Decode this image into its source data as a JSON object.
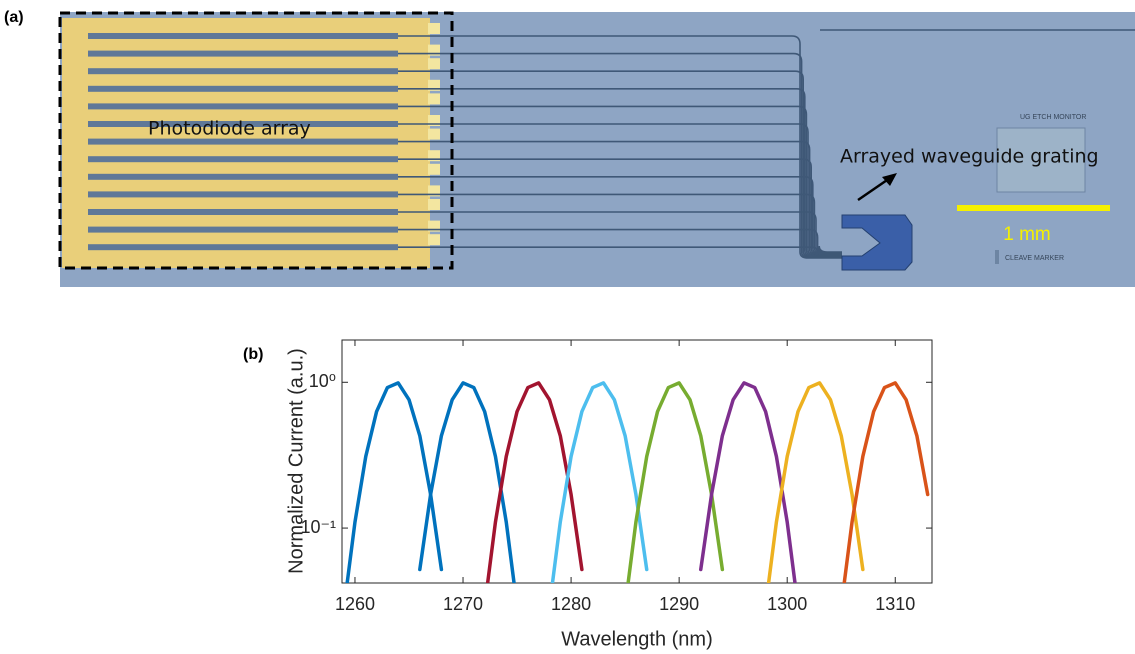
{
  "panel_a": {
    "label": "(a)",
    "photodiode_label": "Photodiode array",
    "awg_label": "Arrayed waveguide grating",
    "scale_label": "1 mm",
    "monitor_label": "UG ETCH MONITOR",
    "marker_label": "CLEAVE MARKER"
  },
  "chart_data": {
    "type": "line",
    "panel_label": "(b)",
    "x_label": "Wavelength (nm)",
    "y_label": "Normalized Current (a.u.)",
    "y_scale": "log",
    "xlim": [
      1258.8,
      1313.4
    ],
    "xticks": [
      1260,
      1270,
      1280,
      1290,
      1300,
      1310
    ],
    "ylim": [
      0.042,
      1.95
    ],
    "yticks": [
      {
        "value": 0.1,
        "label": "10⁻¹"
      },
      {
        "value": 1,
        "label": "10⁰"
      }
    ],
    "line_width": 3.5,
    "series": [
      {
        "color": "#0072BD",
        "x": [
          1259,
          1260,
          1261,
          1262,
          1263,
          1264,
          1265,
          1266,
          1267,
          1268
        ],
        "values": [
          0.029,
          0.11,
          0.31,
          0.63,
          0.92,
          0.99,
          0.76,
          0.43,
          0.17,
          0.052
        ]
      },
      {
        "color": "#0072BD",
        "x": [
          1266,
          1267,
          1268,
          1269,
          1270,
          1271,
          1272,
          1273,
          1274,
          1275
        ],
        "values": [
          0.052,
          0.17,
          0.43,
          0.76,
          0.99,
          0.92,
          0.63,
          0.31,
          0.11,
          0.029
        ]
      },
      {
        "color": "#A2142F",
        "x": [
          1272,
          1273,
          1274,
          1275,
          1276,
          1277,
          1278,
          1279,
          1280,
          1281
        ],
        "values": [
          0.029,
          0.11,
          0.31,
          0.63,
          0.92,
          0.99,
          0.76,
          0.43,
          0.17,
          0.052
        ]
      },
      {
        "color": "#4DBEEE",
        "x": [
          1278,
          1279,
          1280,
          1281,
          1282,
          1283,
          1284,
          1285,
          1286,
          1287
        ],
        "values": [
          0.029,
          0.11,
          0.31,
          0.63,
          0.92,
          0.99,
          0.76,
          0.43,
          0.17,
          0.052
        ]
      },
      {
        "color": "#77AC30",
        "x": [
          1285,
          1286,
          1287,
          1288,
          1289,
          1290,
          1291,
          1292,
          1293,
          1294
        ],
        "values": [
          0.029,
          0.11,
          0.31,
          0.63,
          0.92,
          0.99,
          0.76,
          0.43,
          0.17,
          0.052
        ]
      },
      {
        "color": "#7E2F8E",
        "x": [
          1292,
          1293,
          1294,
          1295,
          1296,
          1297,
          1298,
          1299,
          1300,
          1301
        ],
        "values": [
          0.052,
          0.17,
          0.43,
          0.76,
          0.99,
          0.92,
          0.63,
          0.31,
          0.11,
          0.029
        ]
      },
      {
        "color": "#EDB120",
        "x": [
          1298,
          1299,
          1300,
          1301,
          1302,
          1303,
          1304,
          1305,
          1306,
          1307
        ],
        "values": [
          0.029,
          0.11,
          0.31,
          0.63,
          0.92,
          0.99,
          0.76,
          0.43,
          0.17,
          0.052
        ]
      },
      {
        "color": "#D95319",
        "x": [
          1305,
          1306,
          1307,
          1308,
          1309,
          1310,
          1311,
          1312,
          1313
        ],
        "values": [
          0.029,
          0.11,
          0.31,
          0.63,
          0.92,
          0.99,
          0.76,
          0.43,
          0.17
        ]
      }
    ]
  }
}
